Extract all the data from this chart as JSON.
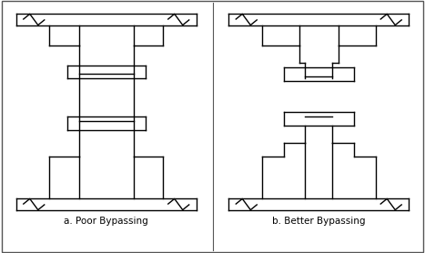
{
  "title_a": "a. Poor Bypassing",
  "title_b": "b. Better Bypassing",
  "bg_color": "#ffffff",
  "line_color": "#000000",
  "lw": 1.0,
  "fig_width": 4.67,
  "fig_height": 2.78
}
